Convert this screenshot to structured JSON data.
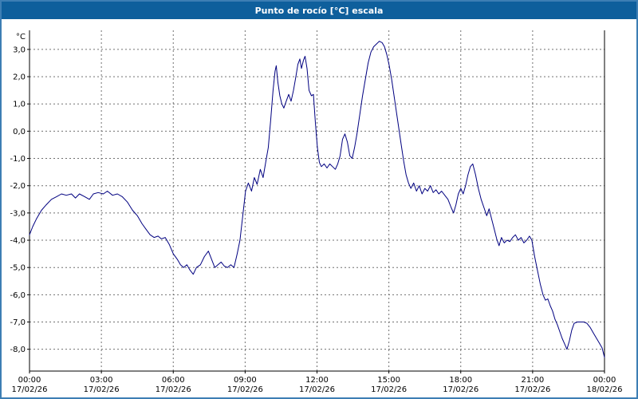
{
  "window": {
    "title": "Punto de rocío [°C] escala"
  },
  "colors": {
    "titlebar": "#0e5f9c",
    "window_border": "#3d7eb4",
    "line": "#000080",
    "grid": "#707070",
    "axis": "#000000",
    "plot_background": "#ffffff",
    "text": "#000000"
  },
  "chart_data": {
    "type": "line",
    "title": "Punto de rocío [°C] escala",
    "xlabel": "",
    "ylabel": "°C",
    "grid": true,
    "legend": "none",
    "y_axis": {
      "unit_label": "°C",
      "tick_values": [
        3,
        2,
        1,
        0,
        -1,
        -2,
        -3,
        -4,
        -5,
        -6,
        -7,
        -8
      ],
      "tick_labels": [
        "3,0",
        "2,0",
        "1,0",
        "0,0",
        "-1,0",
        "-2,0",
        "-3,0",
        "-4,0",
        "-5,0",
        "-6,0",
        "-7,0",
        "-8,0"
      ],
      "min": -8.8,
      "max": 3.7
    },
    "x_axis": {
      "range_minutes": [
        0,
        1440
      ],
      "tick_minutes": [
        0,
        180,
        360,
        540,
        720,
        900,
        1080,
        1260,
        1440
      ],
      "tick_times": [
        "00:00",
        "03:00",
        "06:00",
        "09:00",
        "12:00",
        "15:00",
        "18:00",
        "21:00",
        "00:00"
      ],
      "tick_dates": [
        "17/02/26",
        "17/02/26",
        "17/02/26",
        "17/02/26",
        "17/02/26",
        "17/02/26",
        "17/02/26",
        "17/02/26",
        "18/02/26"
      ]
    },
    "series": [
      {
        "name": "Punto de rocío",
        "color": "#000080",
        "points": [
          [
            0,
            -3.8
          ],
          [
            8,
            -3.5
          ],
          [
            18,
            -3.2
          ],
          [
            30,
            -2.9
          ],
          [
            42,
            -2.7
          ],
          [
            55,
            -2.5
          ],
          [
            68,
            -2.4
          ],
          [
            80,
            -2.3
          ],
          [
            92,
            -2.35
          ],
          [
            105,
            -2.3
          ],
          [
            115,
            -2.45
          ],
          [
            125,
            -2.3
          ],
          [
            138,
            -2.4
          ],
          [
            150,
            -2.5
          ],
          [
            160,
            -2.3
          ],
          [
            172,
            -2.25
          ],
          [
            185,
            -2.3
          ],
          [
            195,
            -2.2
          ],
          [
            208,
            -2.35
          ],
          [
            220,
            -2.3
          ],
          [
            232,
            -2.4
          ],
          [
            245,
            -2.6
          ],
          [
            258,
            -2.9
          ],
          [
            270,
            -3.1
          ],
          [
            282,
            -3.4
          ],
          [
            292,
            -3.6
          ],
          [
            302,
            -3.8
          ],
          [
            312,
            -3.9
          ],
          [
            322,
            -3.85
          ],
          [
            330,
            -3.95
          ],
          [
            340,
            -3.9
          ],
          [
            350,
            -4.15
          ],
          [
            360,
            -4.5
          ],
          [
            370,
            -4.7
          ],
          [
            378,
            -4.9
          ],
          [
            386,
            -5.0
          ],
          [
            394,
            -4.9
          ],
          [
            402,
            -5.1
          ],
          [
            410,
            -5.25
          ],
          [
            418,
            -5.0
          ],
          [
            428,
            -4.9
          ],
          [
            438,
            -4.6
          ],
          [
            448,
            -4.4
          ],
          [
            456,
            -4.7
          ],
          [
            464,
            -5.0
          ],
          [
            472,
            -4.9
          ],
          [
            480,
            -4.8
          ],
          [
            488,
            -4.95
          ],
          [
            496,
            -5.0
          ],
          [
            504,
            -4.9
          ],
          [
            512,
            -5.0
          ],
          [
            520,
            -4.5
          ],
          [
            527,
            -4.0
          ],
          [
            534,
            -3.1
          ],
          [
            541,
            -2.2
          ],
          [
            548,
            -1.9
          ],
          [
            556,
            -2.2
          ],
          [
            563,
            -1.7
          ],
          [
            570,
            -1.95
          ],
          [
            578,
            -1.4
          ],
          [
            585,
            -1.7
          ],
          [
            592,
            -1.1
          ],
          [
            598,
            -0.6
          ],
          [
            604,
            0.4
          ],
          [
            610,
            1.5
          ],
          [
            615,
            2.2
          ],
          [
            618,
            2.4
          ],
          [
            622,
            1.8
          ],
          [
            627,
            1.3
          ],
          [
            632,
            1.0
          ],
          [
            637,
            0.85
          ],
          [
            643,
            1.1
          ],
          [
            649,
            1.35
          ],
          [
            655,
            1.1
          ],
          [
            661,
            1.5
          ],
          [
            667,
            2.0
          ],
          [
            672,
            2.45
          ],
          [
            677,
            2.65
          ],
          [
            681,
            2.3
          ],
          [
            686,
            2.6
          ],
          [
            690,
            2.75
          ],
          [
            695,
            2.3
          ],
          [
            700,
            1.5
          ],
          [
            706,
            1.3
          ],
          [
            711,
            1.35
          ],
          [
            716,
            0.3
          ],
          [
            721,
            -0.6
          ],
          [
            726,
            -1.15
          ],
          [
            731,
            -1.3
          ],
          [
            738,
            -1.2
          ],
          [
            745,
            -1.35
          ],
          [
            752,
            -1.2
          ],
          [
            759,
            -1.3
          ],
          [
            766,
            -1.4
          ],
          [
            772,
            -1.2
          ],
          [
            778,
            -0.9
          ],
          [
            784,
            -0.3
          ],
          [
            790,
            -0.1
          ],
          [
            796,
            -0.4
          ],
          [
            802,
            -0.9
          ],
          [
            808,
            -1.0
          ],
          [
            814,
            -0.6
          ],
          [
            820,
            -0.1
          ],
          [
            827,
            0.6
          ],
          [
            834,
            1.3
          ],
          [
            841,
            1.9
          ],
          [
            848,
            2.5
          ],
          [
            855,
            2.9
          ],
          [
            862,
            3.1
          ],
          [
            869,
            3.2
          ],
          [
            876,
            3.3
          ],
          [
            883,
            3.25
          ],
          [
            889,
            3.1
          ],
          [
            895,
            2.8
          ],
          [
            901,
            2.4
          ],
          [
            907,
            1.9
          ],
          [
            913,
            1.3
          ],
          [
            919,
            0.7
          ],
          [
            925,
            0.1
          ],
          [
            931,
            -0.5
          ],
          [
            937,
            -1.1
          ],
          [
            943,
            -1.6
          ],
          [
            949,
            -1.9
          ],
          [
            955,
            -2.1
          ],
          [
            962,
            -1.9
          ],
          [
            969,
            -2.2
          ],
          [
            976,
            -2.0
          ],
          [
            983,
            -2.3
          ],
          [
            990,
            -2.1
          ],
          [
            997,
            -2.2
          ],
          [
            1004,
            -2.0
          ],
          [
            1011,
            -2.25
          ],
          [
            1018,
            -2.15
          ],
          [
            1025,
            -2.3
          ],
          [
            1032,
            -2.2
          ],
          [
            1040,
            -2.35
          ],
          [
            1048,
            -2.5
          ],
          [
            1056,
            -2.8
          ],
          [
            1062,
            -3.0
          ],
          [
            1068,
            -2.7
          ],
          [
            1074,
            -2.3
          ],
          [
            1080,
            -2.1
          ],
          [
            1086,
            -2.3
          ],
          [
            1092,
            -2.0
          ],
          [
            1098,
            -1.6
          ],
          [
            1104,
            -1.3
          ],
          [
            1110,
            -1.2
          ],
          [
            1117,
            -1.6
          ],
          [
            1124,
            -2.1
          ],
          [
            1131,
            -2.5
          ],
          [
            1138,
            -2.8
          ],
          [
            1145,
            -3.1
          ],
          [
            1151,
            -2.85
          ],
          [
            1157,
            -3.2
          ],
          [
            1164,
            -3.6
          ],
          [
            1170,
            -3.95
          ],
          [
            1176,
            -4.2
          ],
          [
            1182,
            -3.9
          ],
          [
            1189,
            -4.1
          ],
          [
            1196,
            -4.0
          ],
          [
            1203,
            -4.05
          ],
          [
            1210,
            -3.9
          ],
          [
            1217,
            -3.8
          ],
          [
            1224,
            -4.0
          ],
          [
            1231,
            -3.9
          ],
          [
            1238,
            -4.1
          ],
          [
            1245,
            -4.0
          ],
          [
            1252,
            -3.85
          ],
          [
            1258,
            -4.0
          ],
          [
            1265,
            -4.6
          ],
          [
            1272,
            -5.1
          ],
          [
            1279,
            -5.6
          ],
          [
            1286,
            -6.0
          ],
          [
            1292,
            -6.2
          ],
          [
            1298,
            -6.15
          ],
          [
            1304,
            -6.4
          ],
          [
            1310,
            -6.6
          ],
          [
            1316,
            -6.9
          ],
          [
            1322,
            -7.1
          ],
          [
            1328,
            -7.35
          ],
          [
            1334,
            -7.6
          ],
          [
            1340,
            -7.8
          ],
          [
            1346,
            -8.0
          ],
          [
            1352,
            -7.7
          ],
          [
            1358,
            -7.3
          ],
          [
            1364,
            -7.05
          ],
          [
            1372,
            -7.0
          ],
          [
            1380,
            -7.0
          ],
          [
            1388,
            -7.0
          ],
          [
            1396,
            -7.05
          ],
          [
            1404,
            -7.2
          ],
          [
            1412,
            -7.4
          ],
          [
            1420,
            -7.6
          ],
          [
            1428,
            -7.8
          ],
          [
            1434,
            -7.95
          ],
          [
            1440,
            -8.3
          ]
        ]
      }
    ]
  }
}
